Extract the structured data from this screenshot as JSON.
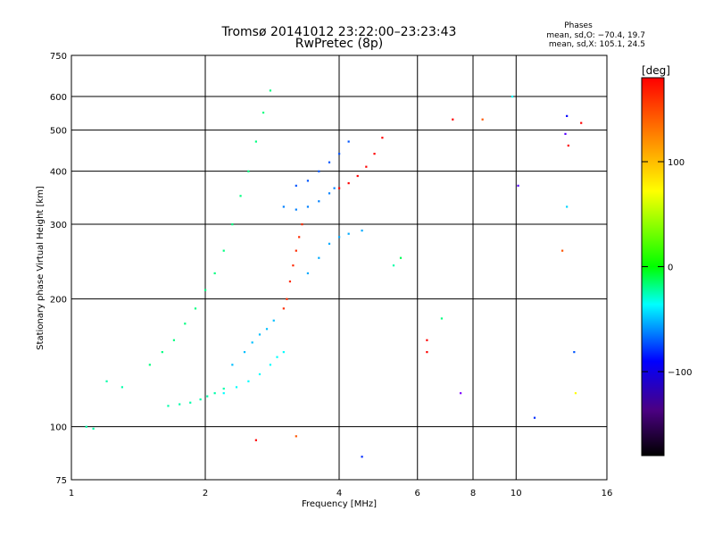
{
  "chart_data": {
    "type": "scatter",
    "title": "Tromsø 20141012 23:22:00–23:23:43",
    "subtitle": "RwPretec (8p)",
    "xlabel": "Frequency [MHz]",
    "ylabel": "Stationary phase Virtual Height [km]",
    "xscale": "log",
    "yscale": "log",
    "xlim": [
      1,
      16
    ],
    "ylim": [
      75,
      750
    ],
    "x_ticks": [
      1,
      2,
      4,
      6,
      8,
      10,
      16
    ],
    "x_tick_labels": [
      "1",
      "2",
      "4",
      "6",
      "8",
      "10",
      "16"
    ],
    "y_ticks": [
      75,
      100,
      200,
      300,
      400,
      500,
      600,
      750
    ],
    "y_tick_labels": [
      "75",
      "100",
      "200",
      "300",
      "400",
      "500",
      "600",
      "750"
    ],
    "grid": true,
    "phase_info": {
      "title": "Phases",
      "line_o": "mean, sd,O: −70.4, 19.7",
      "line_x": "mean, sd,X: 105.1, 24.5"
    },
    "colorbar": {
      "label": "[deg]",
      "min": -180,
      "max": 180,
      "ticks": [
        100,
        0,
        -100
      ],
      "tick_labels": [
        "100",
        "0",
        "−100"
      ],
      "placement": "right"
    },
    "traces": [
      {
        "name": "",
        "phase": -40,
        "points": [
          [
            1.65,
            112
          ],
          [
            1.75,
            113
          ],
          [
            1.85,
            114
          ],
          [
            1.95,
            116
          ],
          [
            2.02,
            118
          ],
          [
            2.1,
            120
          ],
          [
            2.2,
            123
          ],
          [
            1.08,
            100
          ],
          [
            1.12,
            99
          ],
          [
            1.2,
            128
          ],
          [
            1.3,
            124
          ]
        ]
      },
      {
        "name": "",
        "phase": -60,
        "points": [
          [
            2.2,
            120
          ],
          [
            2.35,
            124
          ],
          [
            2.5,
            128
          ],
          [
            2.65,
            133
          ],
          [
            2.8,
            140
          ],
          [
            2.9,
            146
          ],
          [
            3.0,
            150
          ]
        ]
      },
      {
        "name": "",
        "phase": -75,
        "points": [
          [
            2.3,
            140
          ],
          [
            2.45,
            150
          ],
          [
            2.55,
            158
          ],
          [
            2.65,
            165
          ],
          [
            2.75,
            170
          ],
          [
            2.85,
            178
          ]
        ]
      },
      {
        "name": "",
        "phase": -90,
        "points": [
          [
            3.0,
            330
          ],
          [
            3.2,
            325
          ],
          [
            3.4,
            330
          ],
          [
            3.6,
            340
          ],
          [
            3.8,
            355
          ],
          [
            3.9,
            365
          ]
        ]
      },
      {
        "name": "",
        "phase": -100,
        "points": [
          [
            3.2,
            370
          ],
          [
            3.4,
            380
          ],
          [
            3.6,
            400
          ],
          [
            3.8,
            420
          ],
          [
            4.0,
            440
          ],
          [
            4.2,
            470
          ]
        ]
      },
      {
        "name": "",
        "phase": 110,
        "points": [
          [
            3.0,
            190
          ],
          [
            3.05,
            200
          ],
          [
            3.1,
            220
          ],
          [
            3.15,
            240
          ],
          [
            3.2,
            260
          ],
          [
            3.25,
            280
          ],
          [
            3.3,
            300
          ]
        ]
      },
      {
        "name": "",
        "phase": 130,
        "points": [
          [
            4.0,
            365
          ],
          [
            4.2,
            375
          ],
          [
            4.4,
            390
          ],
          [
            4.6,
            410
          ],
          [
            4.8,
            440
          ],
          [
            5.0,
            480
          ]
        ]
      },
      {
        "name": "",
        "phase": -80,
        "points": [
          [
            3.4,
            230
          ],
          [
            3.6,
            250
          ],
          [
            3.8,
            270
          ],
          [
            4.0,
            280
          ],
          [
            4.2,
            285
          ],
          [
            4.5,
            290
          ]
        ]
      },
      {
        "name": "",
        "phase": -30,
        "points": [
          [
            1.5,
            140
          ],
          [
            1.6,
            150
          ],
          [
            1.7,
            160
          ],
          [
            1.8,
            175
          ],
          [
            1.9,
            190
          ],
          [
            2.0,
            210
          ],
          [
            2.1,
            230
          ],
          [
            2.2,
            260
          ],
          [
            2.3,
            300
          ],
          [
            2.4,
            350
          ],
          [
            2.5,
            400
          ],
          [
            2.6,
            470
          ],
          [
            2.7,
            550
          ],
          [
            2.8,
            620
          ]
        ]
      }
    ],
    "scattered_points": [
      [
        6.3,
        160,
        170
      ],
      [
        6.3,
        150,
        140
      ],
      [
        7.5,
        120,
        -150
      ],
      [
        10.1,
        370,
        -140
      ],
      [
        13.0,
        540,
        -120
      ],
      [
        12.9,
        490,
        -140
      ],
      [
        13.1,
        460,
        160
      ],
      [
        13.0,
        330,
        -70
      ],
      [
        13.5,
        150,
        -100
      ],
      [
        13.6,
        120,
        60
      ],
      [
        12.7,
        260,
        100
      ],
      [
        11.0,
        105,
        -110
      ],
      [
        9.8,
        600,
        -60
      ],
      [
        5.5,
        250,
        -20
      ],
      [
        5.3,
        240,
        -40
      ],
      [
        6.8,
        180,
        -30
      ],
      [
        4.5,
        85,
        -110
      ],
      [
        2.6,
        93,
        160
      ],
      [
        3.2,
        95,
        100
      ],
      [
        7.2,
        530,
        120
      ],
      [
        8.4,
        530,
        100
      ],
      [
        14.0,
        520,
        130
      ]
    ]
  }
}
